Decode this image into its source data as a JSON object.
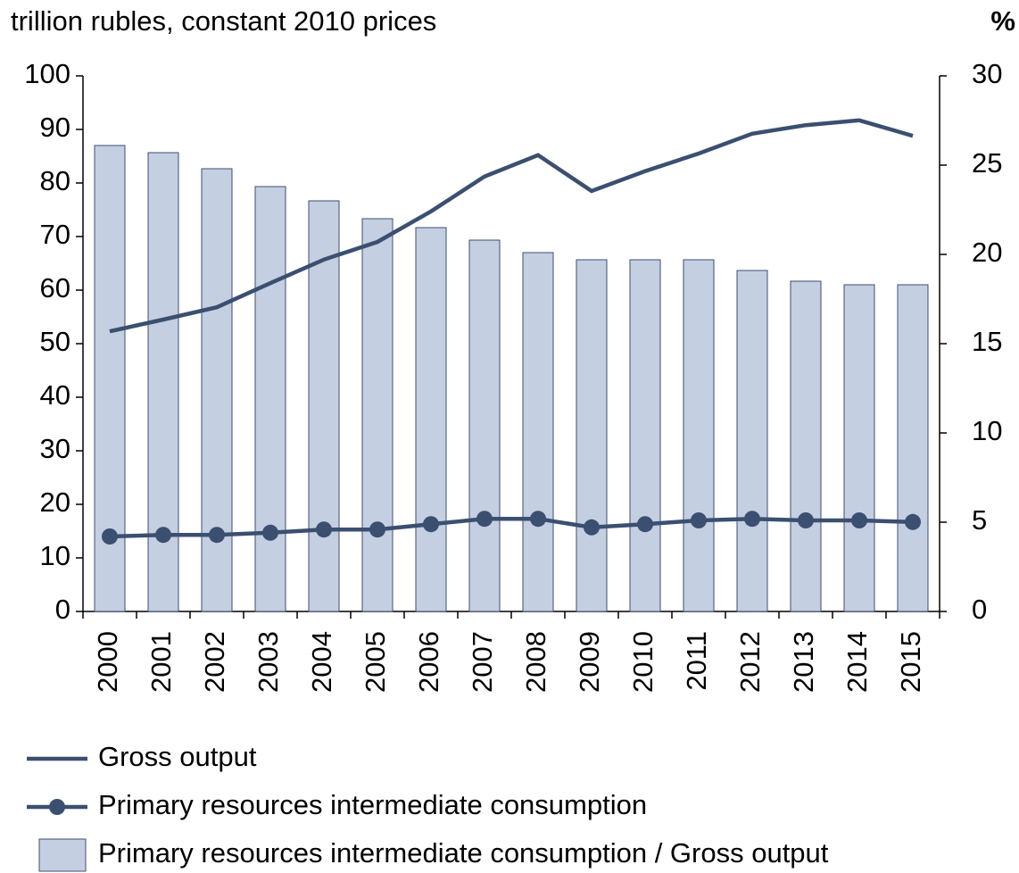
{
  "chart_data": {
    "type": "bar-line",
    "title": "trillion rubles, constant 2010 prices",
    "y2_label": "%",
    "categories": [
      "2000",
      "2001",
      "2002",
      "2003",
      "2004",
      "2005",
      "2006",
      "2007",
      "2008",
      "2009",
      "2010",
      "2011",
      "2012",
      "2013",
      "2014",
      "2015"
    ],
    "ylim": [
      0,
      100
    ],
    "yticks": [
      0,
      10,
      20,
      30,
      40,
      50,
      60,
      70,
      80,
      90,
      100
    ],
    "y2lim": [
      0,
      30
    ],
    "y2ticks": [
      0,
      5,
      10,
      15,
      20,
      25,
      30
    ],
    "series": [
      {
        "name": "Gross output",
        "type": "line",
        "color": "#3b4f70",
        "values": [
          52.3,
          54.5,
          56.8,
          61.3,
          65.7,
          69.0,
          74.7,
          81.2,
          85.2,
          78.5,
          82.2,
          85.5,
          89.2,
          90.8,
          91.7,
          88.8
        ]
      },
      {
        "name": "Primary resources intermediate consumption",
        "type": "line-marker",
        "color": "#3b4f70",
        "values": [
          14.0,
          14.3,
          14.3,
          14.7,
          15.3,
          15.3,
          16.3,
          17.3,
          17.3,
          15.7,
          16.3,
          17.0,
          17.3,
          17.0,
          17.0,
          16.7
        ]
      },
      {
        "name": "Primary resources intermediate consumption / Gross output",
        "type": "bar",
        "axis": "y2",
        "color": "#c5cfe2",
        "values": [
          26.1,
          25.7,
          24.8,
          23.8,
          23.0,
          22.0,
          21.5,
          20.8,
          20.1,
          19.7,
          19.7,
          19.7,
          19.1,
          18.5,
          18.3,
          18.3
        ]
      }
    ]
  }
}
